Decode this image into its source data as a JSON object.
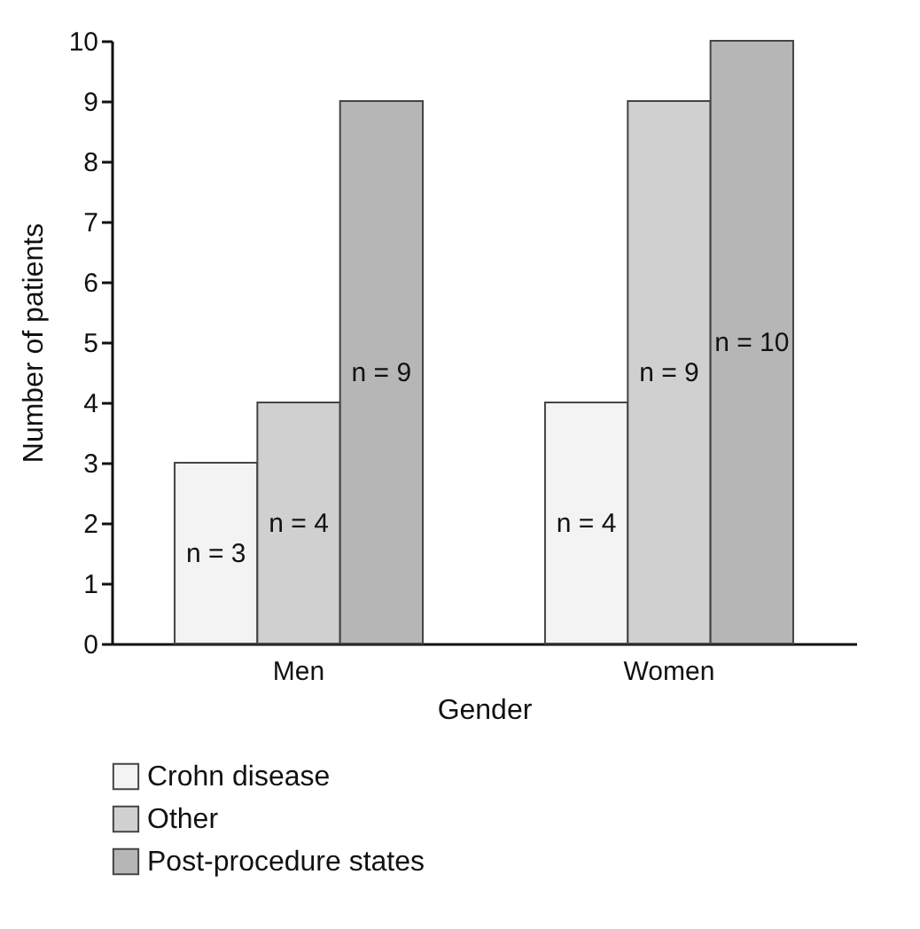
{
  "chart_data": {
    "type": "bar",
    "xlabel": "Gender",
    "ylabel": "Number of patients",
    "categories": [
      "Men",
      "Women"
    ],
    "series": [
      {
        "name": "Crohn disease",
        "color": "#f3f3f3",
        "values": [
          3,
          4
        ],
        "value_labels": [
          "n = 3",
          "n = 4"
        ]
      },
      {
        "name": "Other",
        "color": "#cfd0cf",
        "values": [
          4,
          9
        ],
        "value_labels": [
          "n = 4",
          "n = 9"
        ]
      },
      {
        "name": "Post-procedure states",
        "color": "#b5b6b5",
        "values": [
          9,
          10
        ],
        "value_labels": [
          "n = 9",
          "n = 10"
        ]
      }
    ],
    "ylim": [
      0,
      10
    ],
    "yticks": [
      0,
      1,
      2,
      3,
      4,
      5,
      6,
      7,
      8,
      9,
      10
    ],
    "grid": false,
    "legend": "bottom"
  }
}
